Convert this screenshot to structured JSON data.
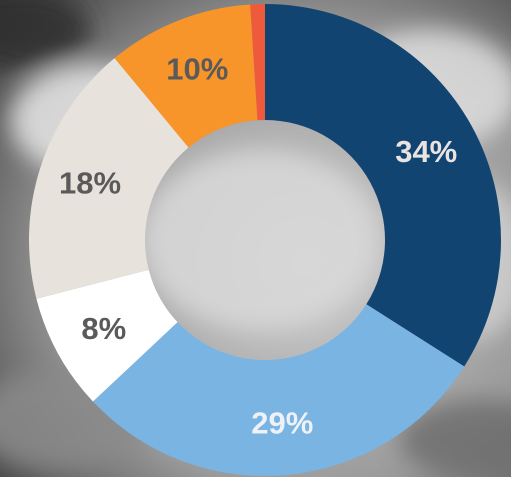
{
  "chart_data": {
    "type": "pie",
    "variant": "donut",
    "title": "",
    "slices": [
      {
        "value": 34,
        "label": "34%",
        "color": "#124472",
        "label_color": "#e9e4e0"
      },
      {
        "value": 29,
        "label": "29%",
        "color": "#7ab4e2",
        "label_color": "#eef2f6"
      },
      {
        "value": 8,
        "label": "8%",
        "color": "#ffffff",
        "label_color": "#5a5a5a"
      },
      {
        "value": 18,
        "label": "18%",
        "color": "#e8e2dc",
        "label_color": "#5a5a5a"
      },
      {
        "value": 10,
        "label": "10%",
        "color": "#f7952a",
        "label_color": "#5a5a5a"
      },
      {
        "value": 1,
        "label": "",
        "color": "#f05a3c",
        "label_color": "#5a5a5a"
      }
    ],
    "start_angle": "top",
    "direction": "clockwise",
    "legend": "none"
  }
}
